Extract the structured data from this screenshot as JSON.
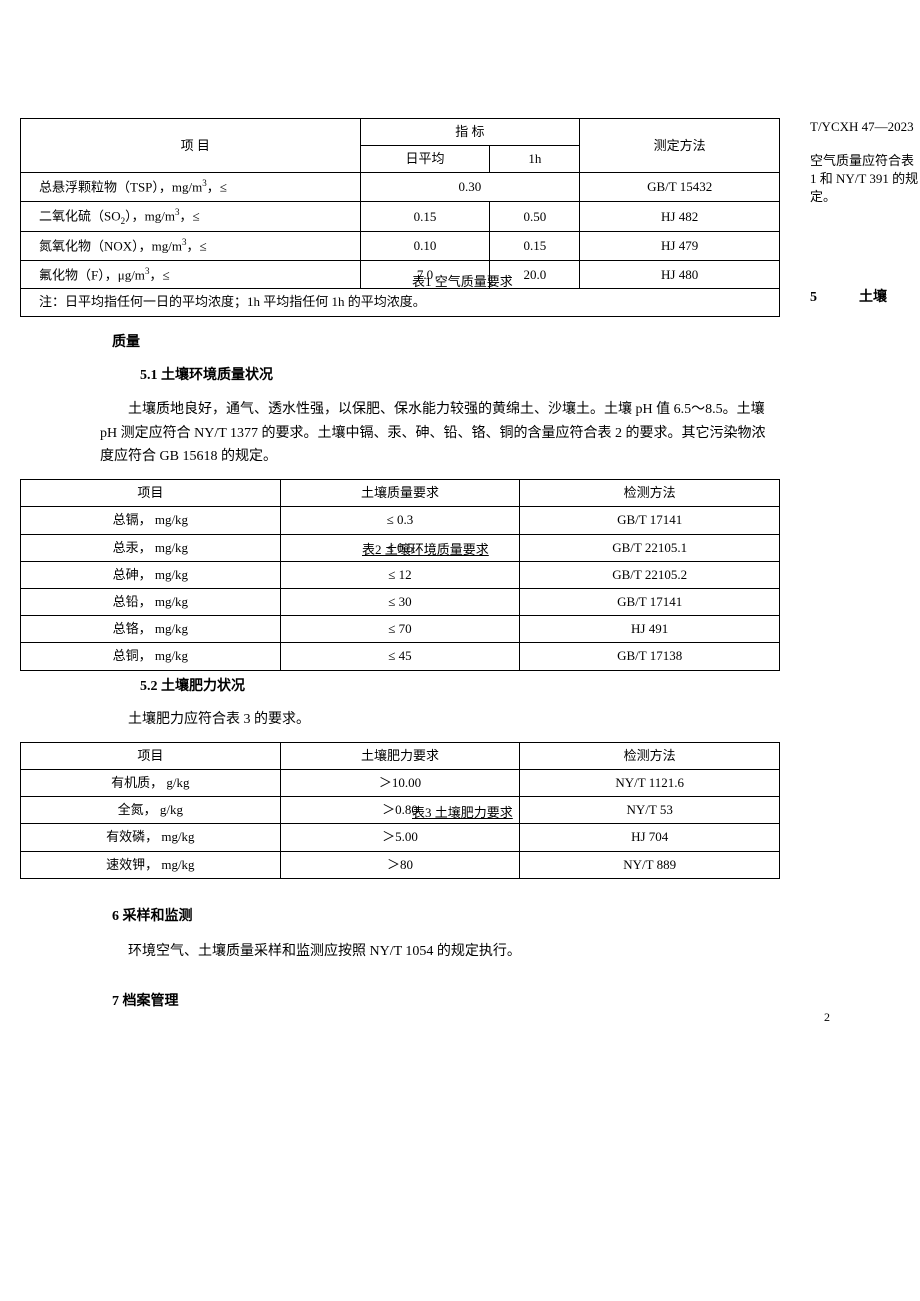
{
  "header": {
    "standard_code": "T/YCXH 47—2023"
  },
  "right_notes": {
    "air_quality_note": "空气质量应符合表 1 和 NY/T 391 的规定。",
    "section5_marker": "5　　　土壤"
  },
  "table1": {
    "caption": "表1 空气质量要求",
    "header": {
      "col1": "项 目",
      "indicator": "指 标",
      "daily_avg": "日平均",
      "one_hour": "1h",
      "method": "测定方法"
    },
    "rows": [
      {
        "item_html": "总悬浮颗粒物（TSP），mg/m<sup>3</sup>，≤",
        "daily": "0.30",
        "hour": "—",
        "method": "GB/T 15432"
      },
      {
        "item_html": "二氧化硫（SO<sub>2</sub>），mg/m<sup>3</sup>，≤",
        "daily": "0.15",
        "hour": "0.50",
        "method": "HJ 482"
      },
      {
        "item_html": "氮氧化物（NOX），mg/m<sup>3</sup>，≤",
        "daily": "0.10",
        "hour": "0.15",
        "method": "HJ 479"
      },
      {
        "item_html": "氟化物（F），μg/m<sup>3</sup>，≤",
        "daily": "7.0",
        "hour": "20.0",
        "method": "HJ 480"
      }
    ],
    "note": "注：日平均指任何一日的平均浓度；1h 平均指任何 1h 的平均浓度。"
  },
  "section_quality": {
    "heading": "质量"
  },
  "section_5_1": {
    "heading": "5.1  土壤环境质量状况",
    "paragraph": "土壤质地良好，通气、透水性强，以保肥、保水能力较强的黄绵土、沙壤土。土壤 pH 值 6.5～8.5。土壤 pH 测定应符合 NY/T 1377 的要求。土壤中镉、汞、砷、铅、铬、铜的含量应符合表 2 的要求。其它污染物浓度应符合 GB 15618 的规定。"
  },
  "table2": {
    "caption": "表2  土壤环境质量要求",
    "header": {
      "col1": "项目",
      "col2": "土壤质量要求",
      "col3": "检测方法"
    },
    "rows": [
      {
        "item": "总镉，   mg/kg",
        "req": "≤ 0.3",
        "method": "GB/T 17141"
      },
      {
        "item": "总汞，   mg/kg",
        "req": "≤ 0.5",
        "method": "GB/T 22105.1"
      },
      {
        "item": "总砷，   mg/kg",
        "req": "≤ 12",
        "method": "GB/T 22105.2"
      },
      {
        "item": "总铅，   mg/kg",
        "req": "≤ 30",
        "method": "GB/T 17141"
      },
      {
        "item": "总铬，   mg/kg",
        "req": "≤ 70",
        "method": "HJ 491"
      },
      {
        "item": "总铜，   mg/kg",
        "req": "≤ 45",
        "method": "GB/T 17138"
      }
    ]
  },
  "section_5_2": {
    "heading": "5.2  土壤肥力状况",
    "paragraph": "土壤肥力应符合表 3 的要求。"
  },
  "table3": {
    "caption": "表3  土壤肥力要求",
    "header": {
      "col1": "项目",
      "col2": "土壤肥力要求",
      "col3": "检测方法"
    },
    "rows": [
      {
        "item": "有机质，   g/kg",
        "req": "＞10.00",
        "method": "NY/T 1121.6"
      },
      {
        "item": "全氮，  g/kg",
        "req": "＞0.80",
        "method": "NY/T 53"
      },
      {
        "item": "有效磷，  mg/kg",
        "req": "＞5.00",
        "method": "HJ 704"
      },
      {
        "item": "速效钾，  mg/kg",
        "req": "＞80",
        "method": "NY/T 889"
      }
    ]
  },
  "section_6": {
    "heading": "6  采样和监测",
    "paragraph": "环境空气、土壤质量采样和监测应按照 NY/T 1054 的规定执行。"
  },
  "section_7": {
    "heading": "7  档案管理"
  },
  "page_number": "2"
}
